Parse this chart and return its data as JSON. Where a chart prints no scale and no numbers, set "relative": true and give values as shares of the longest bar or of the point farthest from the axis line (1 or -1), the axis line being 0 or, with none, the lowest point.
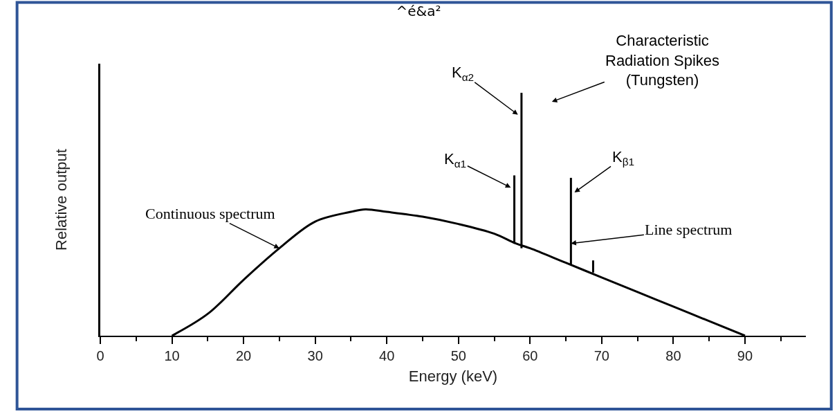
{
  "chart_data": {
    "type": "line",
    "title": "^é&a²",
    "xlabel": "Energy (keV)",
    "ylabel": "Relative output",
    "relative": true,
    "xlim": [
      0,
      98.5
    ],
    "xticks": [
      0,
      {
        "value": 5,
        "label": null
      },
      10,
      {
        "value": 15,
        "label": null
      },
      20,
      {
        "value": 25,
        "label": null
      },
      30,
      {
        "value": 35,
        "label": null
      },
      40,
      {
        "value": 45,
        "label": null
      },
      50,
      {
        "value": 55,
        "label": null
      },
      60,
      {
        "value": 65,
        "label": null
      },
      70,
      {
        "value": 75,
        "label": null
      },
      80,
      {
        "value": 85,
        "label": null
      },
      90,
      {
        "value": 95,
        "label": null
      }
    ],
    "series": [
      {
        "color": "#000000",
        "x": [
          10,
          15,
          20,
          25,
          30,
          35,
          37,
          40,
          45,
          50,
          55,
          58,
          60,
          65,
          70,
          75,
          80,
          85,
          90
        ],
        "values": [
          0,
          0.09,
          0.23,
          0.36,
          0.47,
          0.51,
          0.52,
          0.51,
          0.49,
          0.46,
          0.42,
          0.38,
          0.36,
          0.3,
          0.24,
          0.18,
          0.12,
          0.06,
          0
        ]
      },
      {
        "color": "#000000",
        "x": [
          57.8,
          57.8
        ],
        "values": [
          0.38,
          0.66
        ]
      },
      {
        "color": "#000000",
        "x": [
          58.8,
          58.8
        ],
        "values": [
          0.36,
          1
        ]
      },
      {
        "color": "#000000",
        "x": [
          65.7,
          65.7
        ],
        "values": [
          0.29,
          0.65
        ]
      },
      {
        "color": "#000000",
        "x": [
          68.8,
          68.8
        ],
        "values": [
          0.26,
          0.31
        ]
      }
    ],
    "annotations": [
      {
        "text": "Continuous spectrum",
        "x": 25,
        "y": 0.36
      },
      {
        "text": "K$_{α1}$",
        "x": 57.3,
        "y": 0.61
      },
      {
        "text": "K$_{α2}$",
        "x": 58.3,
        "y": 0.91
      },
      {
        "text": "K$_{β1}$",
        "x": 66.2,
        "y": 0.59
      },
      "Characteristic\nRadiation Spikes\n(Tungsten)",
      {
        "text": "Line spectrum",
        "x": 65.7,
        "y": 0.38
      }
    ],
    "line_style": "solid",
    "marker": "none"
  }
}
